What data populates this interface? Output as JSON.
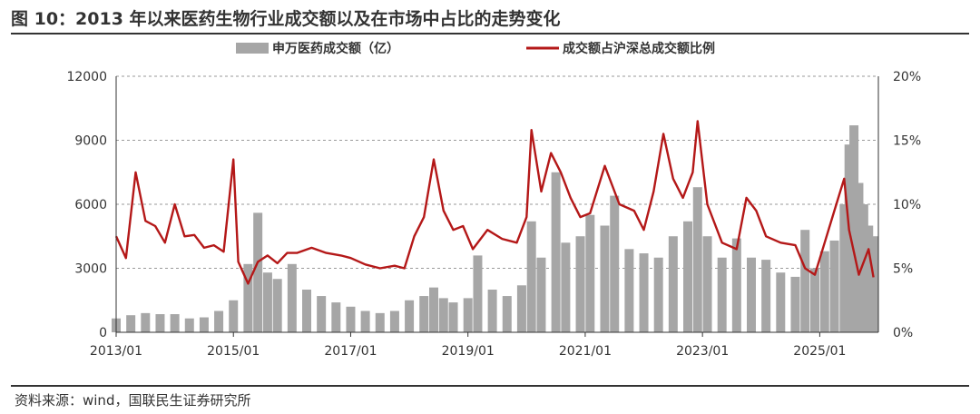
{
  "title": "图 10：2013 年以来医药生物行业成交额以及在市场中占比的走势变化",
  "source": "资料来源：wind，国联民生证券研究所",
  "colors": {
    "bar": "#a6a6a6",
    "line": "#b41818",
    "grid": "#9a9a9a"
  },
  "chart_data": {
    "type": "bar+line",
    "legend_placement": "top",
    "grid": true,
    "x_ticks": [
      "2013/01",
      "2015/01",
      "2017/01",
      "2019/01",
      "2021/01",
      "2023/01",
      "2025/01"
    ],
    "x_range": [
      "2013/01",
      "2025/12"
    ],
    "y_left": {
      "ticks": [
        "0",
        "3000",
        "6000",
        "9000",
        "12000"
      ],
      "range": [
        0,
        12000
      ]
    },
    "y_right": {
      "ticks": [
        "0%",
        "5%",
        "10%",
        "15%",
        "20%"
      ],
      "range": [
        0,
        20
      ]
    },
    "series": [
      {
        "name": "申万医药成交额（亿）",
        "type": "bar",
        "axis": "left",
        "points": [
          [
            "2013/01",
            650
          ],
          [
            "2013/04",
            800
          ],
          [
            "2013/07",
            900
          ],
          [
            "2013/10",
            850
          ],
          [
            "2014/01",
            850
          ],
          [
            "2014/04",
            650
          ],
          [
            "2014/07",
            700
          ],
          [
            "2014/10",
            1000
          ],
          [
            "2015/01",
            1500
          ],
          [
            "2015/04",
            3200
          ],
          [
            "2015/06",
            5600
          ],
          [
            "2015/08",
            2800
          ],
          [
            "2015/10",
            2500
          ],
          [
            "2016/01",
            3200
          ],
          [
            "2016/04",
            2000
          ],
          [
            "2016/07",
            1700
          ],
          [
            "2016/10",
            1400
          ],
          [
            "2017/01",
            1200
          ],
          [
            "2017/04",
            1000
          ],
          [
            "2017/07",
            900
          ],
          [
            "2017/10",
            1000
          ],
          [
            "2018/01",
            1500
          ],
          [
            "2018/04",
            1700
          ],
          [
            "2018/06",
            2100
          ],
          [
            "2018/08",
            1600
          ],
          [
            "2018/10",
            1400
          ],
          [
            "2019/01",
            1600
          ],
          [
            "2019/03",
            3600
          ],
          [
            "2019/06",
            2000
          ],
          [
            "2019/09",
            1700
          ],
          [
            "2019/12",
            2200
          ],
          [
            "2020/02",
            5200
          ],
          [
            "2020/04",
            3500
          ],
          [
            "2020/07",
            7500
          ],
          [
            "2020/09",
            4200
          ],
          [
            "2020/12",
            4500
          ],
          [
            "2021/02",
            5500
          ],
          [
            "2021/05",
            5000
          ],
          [
            "2021/07",
            6400
          ],
          [
            "2021/10",
            3900
          ],
          [
            "2022/01",
            3700
          ],
          [
            "2022/04",
            3500
          ],
          [
            "2022/07",
            4500
          ],
          [
            "2022/10",
            5200
          ],
          [
            "2022/12",
            6800
          ],
          [
            "2023/02",
            4500
          ],
          [
            "2023/05",
            3500
          ],
          [
            "2023/08",
            4400
          ],
          [
            "2023/11",
            3500
          ],
          [
            "2024/02",
            3400
          ],
          [
            "2024/05",
            2800
          ],
          [
            "2024/08",
            2600
          ],
          [
            "2024/10",
            4800
          ],
          [
            "2024/12",
            3000
          ],
          [
            "2025/02",
            3800
          ],
          [
            "2025/04",
            4300
          ],
          [
            "2025/06",
            6000
          ],
          [
            "2025/07",
            8800
          ],
          [
            "2025/08",
            9700
          ],
          [
            "2025/09",
            7000
          ],
          [
            "2025/10",
            6000
          ],
          [
            "2025/11",
            5000
          ],
          [
            "2025/12",
            4500
          ]
        ]
      },
      {
        "name": "成交额占沪深总成交额比例",
        "type": "line",
        "axis": "right",
        "points": [
          [
            "2013/01",
            7.5
          ],
          [
            "2013/03",
            5.8
          ],
          [
            "2013/05",
            12.5
          ],
          [
            "2013/07",
            8.7
          ],
          [
            "2013/09",
            8.3
          ],
          [
            "2013/11",
            7.0
          ],
          [
            "2014/01",
            10.0
          ],
          [
            "2014/03",
            7.5
          ],
          [
            "2014/05",
            7.6
          ],
          [
            "2014/07",
            6.6
          ],
          [
            "2014/09",
            6.8
          ],
          [
            "2014/11",
            6.3
          ],
          [
            "2015/01",
            13.5
          ],
          [
            "2015/02",
            5.5
          ],
          [
            "2015/04",
            3.8
          ],
          [
            "2015/06",
            5.5
          ],
          [
            "2015/08",
            6.0
          ],
          [
            "2015/10",
            5.4
          ],
          [
            "2015/12",
            6.2
          ],
          [
            "2016/02",
            6.2
          ],
          [
            "2016/05",
            6.6
          ],
          [
            "2016/08",
            6.2
          ],
          [
            "2016/11",
            6.0
          ],
          [
            "2017/01",
            5.8
          ],
          [
            "2017/04",
            5.3
          ],
          [
            "2017/07",
            5.0
          ],
          [
            "2017/10",
            5.2
          ],
          [
            "2017/12",
            5.0
          ],
          [
            "2018/02",
            7.5
          ],
          [
            "2018/04",
            9.0
          ],
          [
            "2018/06",
            13.5
          ],
          [
            "2018/08",
            9.5
          ],
          [
            "2018/10",
            8.0
          ],
          [
            "2018/12",
            8.3
          ],
          [
            "2019/02",
            6.5
          ],
          [
            "2019/05",
            8.0
          ],
          [
            "2019/08",
            7.3
          ],
          [
            "2019/11",
            7.0
          ],
          [
            "2020/01",
            9.0
          ],
          [
            "2020/02",
            15.8
          ],
          [
            "2020/04",
            11.0
          ],
          [
            "2020/06",
            14.0
          ],
          [
            "2020/08",
            12.5
          ],
          [
            "2020/10",
            10.5
          ],
          [
            "2020/12",
            9.0
          ],
          [
            "2021/02",
            9.3
          ],
          [
            "2021/05",
            13.0
          ],
          [
            "2021/08",
            10.0
          ],
          [
            "2021/11",
            9.5
          ],
          [
            "2022/01",
            8.0
          ],
          [
            "2022/03",
            11.0
          ],
          [
            "2022/05",
            15.5
          ],
          [
            "2022/07",
            12.0
          ],
          [
            "2022/09",
            10.5
          ],
          [
            "2022/11",
            12.5
          ],
          [
            "2022/12",
            16.5
          ],
          [
            "2023/02",
            10.0
          ],
          [
            "2023/05",
            7.0
          ],
          [
            "2023/08",
            6.5
          ],
          [
            "2023/10",
            10.5
          ],
          [
            "2023/12",
            9.5
          ],
          [
            "2024/02",
            7.5
          ],
          [
            "2024/05",
            7.0
          ],
          [
            "2024/08",
            6.8
          ],
          [
            "2024/10",
            5.0
          ],
          [
            "2024/12",
            4.5
          ],
          [
            "2025/02",
            7.0
          ],
          [
            "2025/04",
            9.5
          ],
          [
            "2025/06",
            12.0
          ],
          [
            "2025/07",
            8.0
          ],
          [
            "2025/09",
            4.5
          ],
          [
            "2025/11",
            6.5
          ],
          [
            "2025/12",
            4.3
          ]
        ]
      }
    ]
  }
}
